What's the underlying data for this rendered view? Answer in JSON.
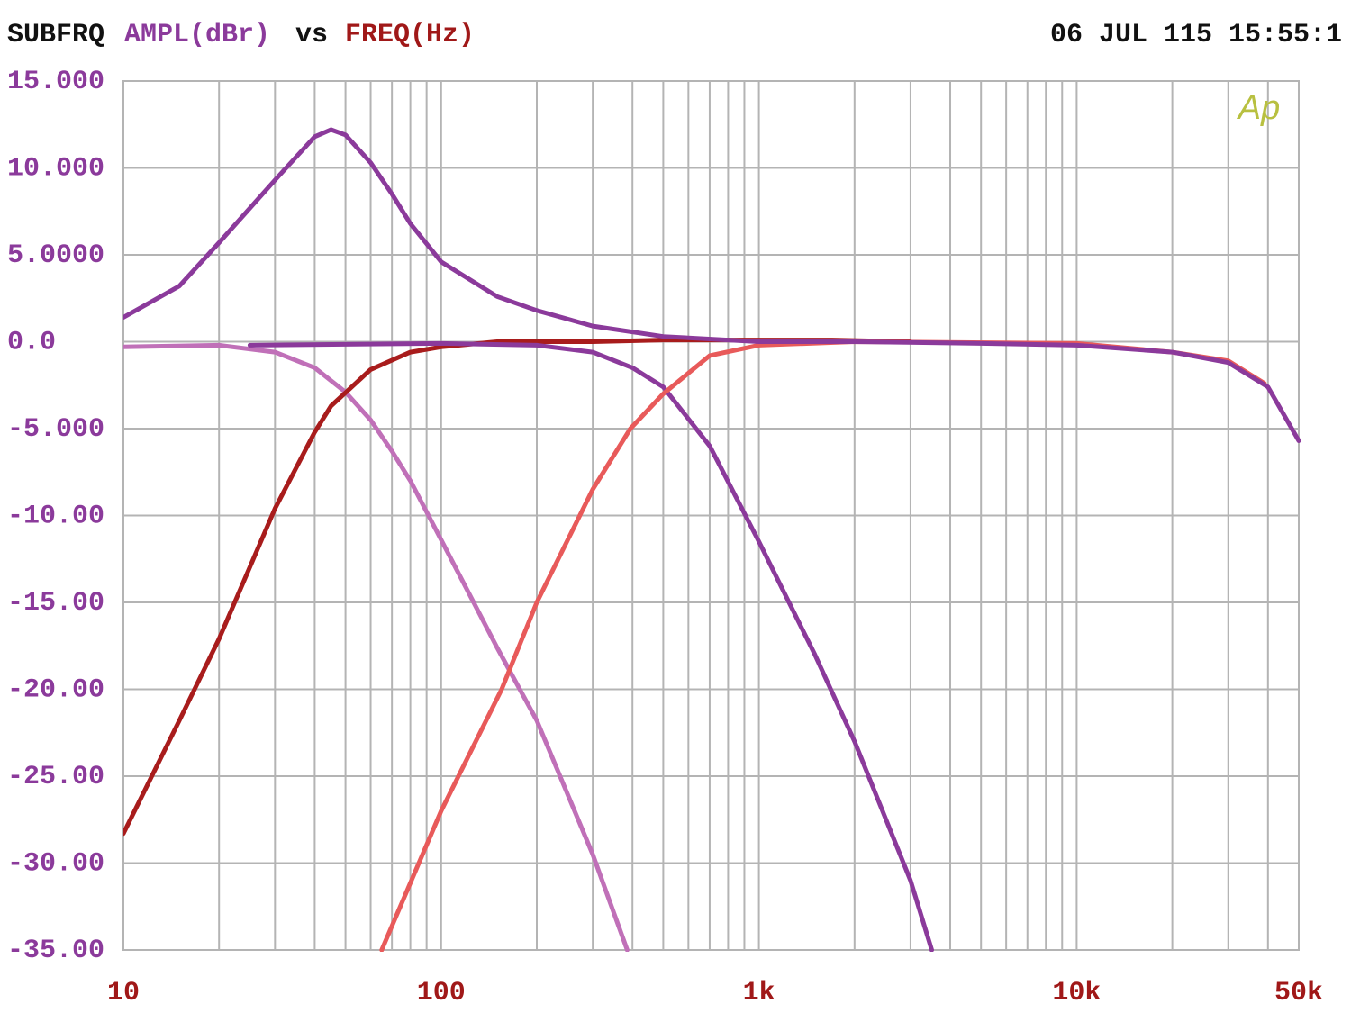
{
  "chart_data": {
    "type": "line",
    "title": "SUBFRQ",
    "ylabel": "AMPL(dBr)",
    "title_joiner": "vs",
    "xlabel": "FREQ(Hz)",
    "timestamp": "06 JUL 115 15:55:1",
    "logo": "Ap",
    "xscale": "log",
    "xlim": [
      10,
      50000
    ],
    "ylim": [
      -35,
      15
    ],
    "xticks": [
      10,
      100,
      {
        "value": 1000,
        "label": "1k"
      },
      {
        "value": 10000,
        "label": "10k"
      },
      {
        "value": 50000,
        "label": "50k"
      }
    ],
    "xgrid": [
      20,
      30,
      40,
      50,
      60,
      70,
      80,
      90,
      200,
      300,
      400,
      500,
      600,
      700,
      800,
      900,
      2000,
      3000,
      4000,
      5000,
      6000,
      7000,
      8000,
      9000,
      20000,
      30000,
      40000
    ],
    "yticks": [
      {
        "value": 15,
        "label": "15.000"
      },
      {
        "value": 10,
        "label": "10.000"
      },
      {
        "value": 5,
        "label": "5.0000"
      },
      {
        "value": 0,
        "label": "0.0"
      },
      {
        "value": -5,
        "label": "-5.000"
      },
      {
        "value": -10,
        "label": "-10.00"
      },
      {
        "value": -15,
        "label": "-15.00"
      },
      {
        "value": -20,
        "label": "-20.00"
      },
      {
        "value": -25,
        "label": "-25.00"
      },
      {
        "value": -30,
        "label": "-30.00"
      },
      {
        "value": -35,
        "label": "-35.00"
      }
    ],
    "grid": true,
    "title_color": "#111111",
    "ylabel_color": "#8b3a9b",
    "xlabel_color": "#a01818",
    "logo_color": "#b8c040",
    "series": [
      {
        "color": "#c070b8",
        "x": [
          10,
          20,
          30,
          40,
          50,
          60,
          70,
          80,
          100,
          150,
          200,
          300,
          385
        ],
        "values": [
          -0.3,
          -0.2,
          -0.6,
          -1.5,
          -2.9,
          -4.5,
          -6.3,
          -8,
          -11.4,
          -17.6,
          -21.8,
          -29.5,
          -35
        ]
      },
      {
        "color": "#a81c1c",
        "x": [
          10,
          15,
          20,
          30,
          40,
          45,
          60,
          80,
          100,
          150,
          300,
          500,
          1000,
          1700,
          3000
        ],
        "values": [
          -28.3,
          -21.8,
          -17.1,
          -9.6,
          -5.2,
          -3.7,
          -1.6,
          -0.6,
          -0.3,
          0,
          0,
          0.1,
          0.1,
          0.1,
          0
        ]
      },
      {
        "color": "#8b3a9b",
        "x": [
          25,
          100,
          200,
          300,
          400,
          500,
          700,
          1000,
          1500,
          2000,
          3000,
          3500
        ],
        "values": [
          -0.2,
          -0.1,
          -0.2,
          -0.6,
          -1.5,
          -2.6,
          -6,
          -11.5,
          -18,
          -23,
          -31,
          -35
        ]
      },
      {
        "color": "#e85a5a",
        "x": [
          65,
          100,
          155,
          200,
          300,
          394,
          500,
          700,
          1000,
          2000,
          10000,
          20000,
          30000,
          39000
        ],
        "values": [
          -35,
          -27,
          -20,
          -15,
          -8.5,
          -5,
          -3,
          -0.8,
          -0.2,
          0,
          -0.1,
          -0.6,
          -1.1,
          -2.4
        ]
      },
      {
        "color": "#8b3a9b",
        "x": [
          10,
          15,
          20,
          30,
          40,
          45,
          50,
          60,
          70,
          80,
          100,
          150,
          200,
          300,
          500,
          1000,
          2000,
          5000,
          10000,
          20000,
          30000,
          40000,
          50000
        ],
        "values": [
          1.4,
          3.2,
          5.7,
          9.3,
          11.8,
          12.2,
          11.9,
          10.3,
          8.5,
          6.8,
          4.6,
          2.6,
          1.8,
          0.9,
          0.3,
          0,
          0,
          -0.1,
          -0.2,
          -0.6,
          -1.2,
          -2.6,
          -5.7
        ]
      }
    ]
  }
}
